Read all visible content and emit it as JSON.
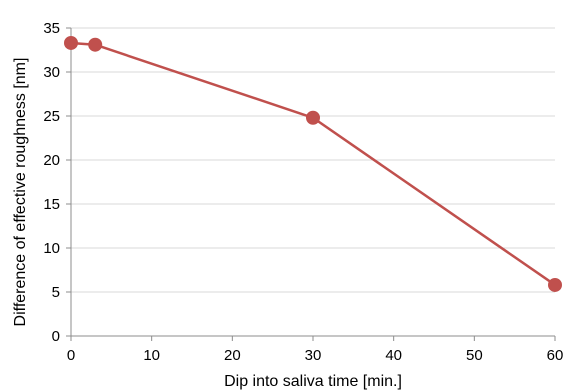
{
  "chart_data": {
    "type": "line",
    "title": "",
    "xlabel": "Dip into saliva time [min.]",
    "ylabel": "Difference of effective roughness [nm]",
    "xlim": [
      0,
      60
    ],
    "ylim": [
      0,
      35
    ],
    "xticks": [
      0,
      10,
      20,
      30,
      40,
      50,
      60
    ],
    "yticks": [
      0,
      5,
      10,
      15,
      20,
      25,
      30,
      35
    ],
    "grid": "horizontal",
    "legend": "none",
    "series": [
      {
        "x": [
          0,
          3,
          30,
          60
        ],
        "y": [
          33.3,
          33.1,
          24.8,
          5.8
        ],
        "color": "#c0504d"
      }
    ]
  }
}
